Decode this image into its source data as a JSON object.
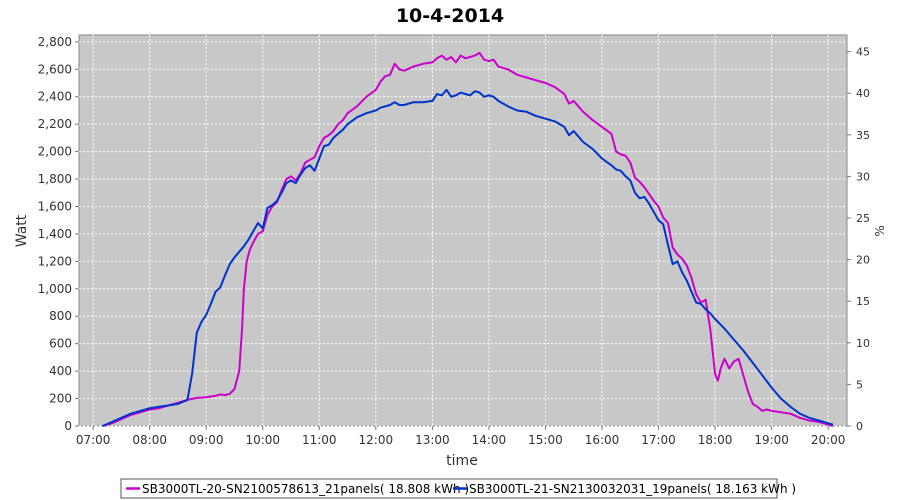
{
  "chart_data": {
    "type": "line",
    "title": "10-4-2014",
    "xlabel": "time",
    "ylabel": "Watt",
    "y2label": "%",
    "x_ticks": [
      "07:00",
      "08:00",
      "09:00",
      "10:00",
      "11:00",
      "12:00",
      "13:00",
      "14:00",
      "15:00",
      "16:00",
      "17:00",
      "18:00",
      "19:00",
      "20:00"
    ],
    "y_ticks": [
      "0",
      "200",
      "400",
      "600",
      "800",
      "1,000",
      "1,200",
      "1,400",
      "1,600",
      "1,800",
      "2,000",
      "2,200",
      "2,400",
      "2,600",
      "2,800"
    ],
    "y2_ticks": [
      "0",
      "5",
      "10",
      "15",
      "20",
      "25",
      "30",
      "35",
      "40",
      "45"
    ],
    "xlim": [
      "06:45",
      "20:20"
    ],
    "ylim": [
      0,
      2850
    ],
    "y2lim": [
      0,
      47
    ],
    "grid": true,
    "legend_position": "bottom",
    "colors": {
      "plot_bg": "#c8c8c8",
      "grid": "#ffffff"
    },
    "series": [
      {
        "name": "SB3000TL-20-SN2100578613_21panels( 18.808 kWh )",
        "color": "#cc00cc",
        "points": [
          [
            "07:10",
            0
          ],
          [
            "07:20",
            20
          ],
          [
            "07:30",
            50
          ],
          [
            "07:40",
            80
          ],
          [
            "07:50",
            100
          ],
          [
            "08:00",
            120
          ],
          [
            "08:10",
            130
          ],
          [
            "08:20",
            150
          ],
          [
            "08:30",
            170
          ],
          [
            "08:40",
            190
          ],
          [
            "08:50",
            205
          ],
          [
            "09:00",
            210
          ],
          [
            "09:10",
            220
          ],
          [
            "09:15",
            230
          ],
          [
            "09:20",
            225
          ],
          [
            "09:25",
            235
          ],
          [
            "09:30",
            270
          ],
          [
            "09:35",
            400
          ],
          [
            "09:38",
            700
          ],
          [
            "09:40",
            1000
          ],
          [
            "09:43",
            1200
          ],
          [
            "09:46",
            1280
          ],
          [
            "09:50",
            1340
          ],
          [
            "09:55",
            1400
          ],
          [
            "10:00",
            1420
          ],
          [
            "10:05",
            1540
          ],
          [
            "10:10",
            1600
          ],
          [
            "10:15",
            1630
          ],
          [
            "10:20",
            1720
          ],
          [
            "10:25",
            1800
          ],
          [
            "10:30",
            1820
          ],
          [
            "10:35",
            1790
          ],
          [
            "10:40",
            1840
          ],
          [
            "10:45",
            1920
          ],
          [
            "10:50",
            1940
          ],
          [
            "10:55",
            1960
          ],
          [
            "11:00",
            2040
          ],
          [
            "11:05",
            2100
          ],
          [
            "11:10",
            2120
          ],
          [
            "11:15",
            2150
          ],
          [
            "11:20",
            2200
          ],
          [
            "11:25",
            2230
          ],
          [
            "11:30",
            2280
          ],
          [
            "11:40",
            2330
          ],
          [
            "11:50",
            2400
          ],
          [
            "12:00",
            2450
          ],
          [
            "12:05",
            2510
          ],
          [
            "12:10",
            2550
          ],
          [
            "12:15",
            2560
          ],
          [
            "12:20",
            2640
          ],
          [
            "12:25",
            2600
          ],
          [
            "12:30",
            2590
          ],
          [
            "12:40",
            2620
          ],
          [
            "12:50",
            2640
          ],
          [
            "13:00",
            2650
          ],
          [
            "13:05",
            2680
          ],
          [
            "13:10",
            2700
          ],
          [
            "13:15",
            2670
          ],
          [
            "13:20",
            2690
          ],
          [
            "13:25",
            2650
          ],
          [
            "13:30",
            2700
          ],
          [
            "13:35",
            2680
          ],
          [
            "13:40",
            2690
          ],
          [
            "13:45",
            2700
          ],
          [
            "13:50",
            2720
          ],
          [
            "13:55",
            2670
          ],
          [
            "14:00",
            2660
          ],
          [
            "14:05",
            2670
          ],
          [
            "14:10",
            2620
          ],
          [
            "14:20",
            2600
          ],
          [
            "14:30",
            2560
          ],
          [
            "14:40",
            2540
          ],
          [
            "14:50",
            2520
          ],
          [
            "15:00",
            2500
          ],
          [
            "15:10",
            2470
          ],
          [
            "15:20",
            2420
          ],
          [
            "15:25",
            2350
          ],
          [
            "15:30",
            2370
          ],
          [
            "15:40",
            2290
          ],
          [
            "15:50",
            2230
          ],
          [
            "16:00",
            2180
          ],
          [
            "16:10",
            2130
          ],
          [
            "16:15",
            2000
          ],
          [
            "16:20",
            1980
          ],
          [
            "16:25",
            1970
          ],
          [
            "16:30",
            1920
          ],
          [
            "16:35",
            1810
          ],
          [
            "16:40",
            1780
          ],
          [
            "16:45",
            1740
          ],
          [
            "16:50",
            1690
          ],
          [
            "16:55",
            1640
          ],
          [
            "17:00",
            1600
          ],
          [
            "17:05",
            1520
          ],
          [
            "17:10",
            1480
          ],
          [
            "17:15",
            1300
          ],
          [
            "17:20",
            1250
          ],
          [
            "17:25",
            1220
          ],
          [
            "17:30",
            1170
          ],
          [
            "17:35",
            1080
          ],
          [
            "17:40",
            960
          ],
          [
            "17:45",
            900
          ],
          [
            "17:50",
            920
          ],
          [
            "17:55",
            700
          ],
          [
            "18:00",
            380
          ],
          [
            "18:03",
            330
          ],
          [
            "18:06",
            420
          ],
          [
            "18:10",
            490
          ],
          [
            "18:15",
            420
          ],
          [
            "18:20",
            470
          ],
          [
            "18:25",
            490
          ],
          [
            "18:30",
            370
          ],
          [
            "18:35",
            250
          ],
          [
            "18:40",
            160
          ],
          [
            "18:45",
            140
          ],
          [
            "18:50",
            110
          ],
          [
            "18:55",
            120
          ],
          [
            "19:00",
            110
          ],
          [
            "19:10",
            100
          ],
          [
            "19:20",
            90
          ],
          [
            "19:30",
            60
          ],
          [
            "19:40",
            40
          ],
          [
            "19:50",
            30
          ],
          [
            "20:00",
            10
          ],
          [
            "20:05",
            0
          ]
        ]
      },
      {
        "name": "SB3000TL-21-SN2130032031_19panels( 18.163 kWh )",
        "color": "#0033cc",
        "points": [
          [
            "07:10",
            0
          ],
          [
            "07:20",
            30
          ],
          [
            "07:30",
            60
          ],
          [
            "07:40",
            90
          ],
          [
            "07:50",
            110
          ],
          [
            "08:00",
            130
          ],
          [
            "08:10",
            140
          ],
          [
            "08:20",
            150
          ],
          [
            "08:30",
            160
          ],
          [
            "08:40",
            190
          ],
          [
            "08:45",
            380
          ],
          [
            "08:50",
            680
          ],
          [
            "08:55",
            760
          ],
          [
            "09:00",
            810
          ],
          [
            "09:05",
            890
          ],
          [
            "09:10",
            980
          ],
          [
            "09:15",
            1010
          ],
          [
            "09:20",
            1100
          ],
          [
            "09:25",
            1180
          ],
          [
            "09:30",
            1230
          ],
          [
            "09:35",
            1270
          ],
          [
            "09:40",
            1310
          ],
          [
            "09:45",
            1360
          ],
          [
            "09:50",
            1420
          ],
          [
            "09:55",
            1480
          ],
          [
            "10:00",
            1440
          ],
          [
            "10:05",
            1590
          ],
          [
            "10:10",
            1610
          ],
          [
            "10:15",
            1640
          ],
          [
            "10:20",
            1700
          ],
          [
            "10:25",
            1770
          ],
          [
            "10:30",
            1790
          ],
          [
            "10:35",
            1770
          ],
          [
            "10:40",
            1830
          ],
          [
            "10:45",
            1880
          ],
          [
            "10:50",
            1900
          ],
          [
            "10:55",
            1860
          ],
          [
            "11:00",
            1950
          ],
          [
            "11:05",
            2040
          ],
          [
            "11:10",
            2050
          ],
          [
            "11:15",
            2100
          ],
          [
            "11:20",
            2130
          ],
          [
            "11:25",
            2160
          ],
          [
            "11:30",
            2200
          ],
          [
            "11:40",
            2250
          ],
          [
            "11:50",
            2280
          ],
          [
            "12:00",
            2300
          ],
          [
            "12:05",
            2320
          ],
          [
            "12:10",
            2330
          ],
          [
            "12:15",
            2340
          ],
          [
            "12:20",
            2360
          ],
          [
            "12:25",
            2340
          ],
          [
            "12:30",
            2340
          ],
          [
            "12:40",
            2360
          ],
          [
            "12:50",
            2360
          ],
          [
            "13:00",
            2370
          ],
          [
            "13:05",
            2420
          ],
          [
            "13:10",
            2410
          ],
          [
            "13:15",
            2450
          ],
          [
            "13:20",
            2400
          ],
          [
            "13:25",
            2410
          ],
          [
            "13:30",
            2430
          ],
          [
            "13:35",
            2420
          ],
          [
            "13:40",
            2410
          ],
          [
            "13:45",
            2440
          ],
          [
            "13:50",
            2430
          ],
          [
            "13:55",
            2400
          ],
          [
            "14:00",
            2410
          ],
          [
            "14:05",
            2400
          ],
          [
            "14:10",
            2370
          ],
          [
            "14:20",
            2330
          ],
          [
            "14:30",
            2300
          ],
          [
            "14:40",
            2290
          ],
          [
            "14:50",
            2260
          ],
          [
            "15:00",
            2240
          ],
          [
            "15:10",
            2220
          ],
          [
            "15:20",
            2180
          ],
          [
            "15:25",
            2120
          ],
          [
            "15:30",
            2150
          ],
          [
            "15:40",
            2070
          ],
          [
            "15:50",
            2020
          ],
          [
            "16:00",
            1950
          ],
          [
            "16:10",
            1900
          ],
          [
            "16:15",
            1870
          ],
          [
            "16:20",
            1860
          ],
          [
            "16:25",
            1820
          ],
          [
            "16:30",
            1790
          ],
          [
            "16:35",
            1700
          ],
          [
            "16:40",
            1660
          ],
          [
            "16:45",
            1670
          ],
          [
            "16:50",
            1620
          ],
          [
            "16:55",
            1560
          ],
          [
            "17:00",
            1500
          ],
          [
            "17:05",
            1470
          ],
          [
            "17:10",
            1320
          ],
          [
            "17:15",
            1180
          ],
          [
            "17:20",
            1200
          ],
          [
            "17:25",
            1120
          ],
          [
            "17:30",
            1060
          ],
          [
            "17:35",
            980
          ],
          [
            "17:40",
            900
          ],
          [
            "17:45",
            890
          ],
          [
            "17:50",
            850
          ],
          [
            "17:55",
            820
          ],
          [
            "18:00",
            780
          ],
          [
            "18:10",
            710
          ],
          [
            "18:20",
            630
          ],
          [
            "18:30",
            550
          ],
          [
            "18:40",
            460
          ],
          [
            "18:50",
            370
          ],
          [
            "19:00",
            280
          ],
          [
            "19:10",
            200
          ],
          [
            "19:20",
            140
          ],
          [
            "19:30",
            90
          ],
          [
            "19:40",
            60
          ],
          [
            "19:50",
            40
          ],
          [
            "20:00",
            20
          ],
          [
            "20:05",
            10
          ]
        ]
      }
    ]
  }
}
